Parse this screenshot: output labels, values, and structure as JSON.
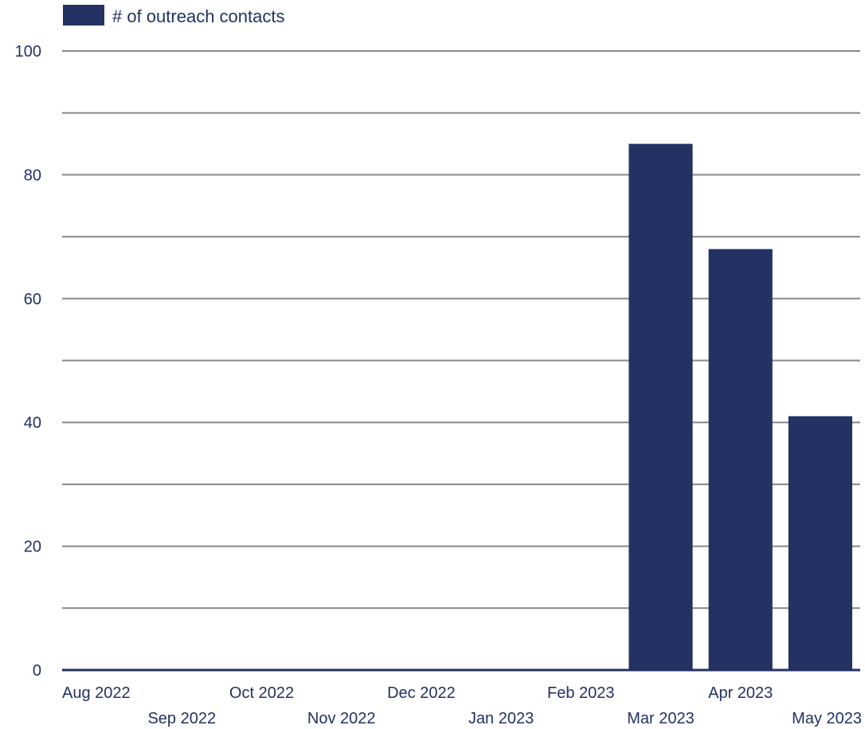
{
  "chart_data": {
    "type": "bar",
    "title": "",
    "xlabel": "",
    "ylabel": "",
    "categories": [
      "Aug 2022",
      "Sep 2022",
      "Oct 2022",
      "Nov 2022",
      "Dec 2022",
      "Jan 2023",
      "Feb 2023",
      "Mar 2023",
      "Apr 2023",
      "May 2023"
    ],
    "series": [
      {
        "name": "# of outreach contacts",
        "values": [
          0,
          0,
          0,
          0,
          0,
          0,
          0,
          85,
          68,
          41
        ]
      }
    ],
    "ylim": [
      0,
      100
    ],
    "yticks": [
      0,
      20,
      40,
      60,
      80,
      100
    ],
    "y_gridlines_step": 10,
    "grid": true,
    "legend": "top-left",
    "colors": {
      "bar": "#233163",
      "text": "#233163",
      "grid": "#888888",
      "baseline": "#233163"
    }
  }
}
